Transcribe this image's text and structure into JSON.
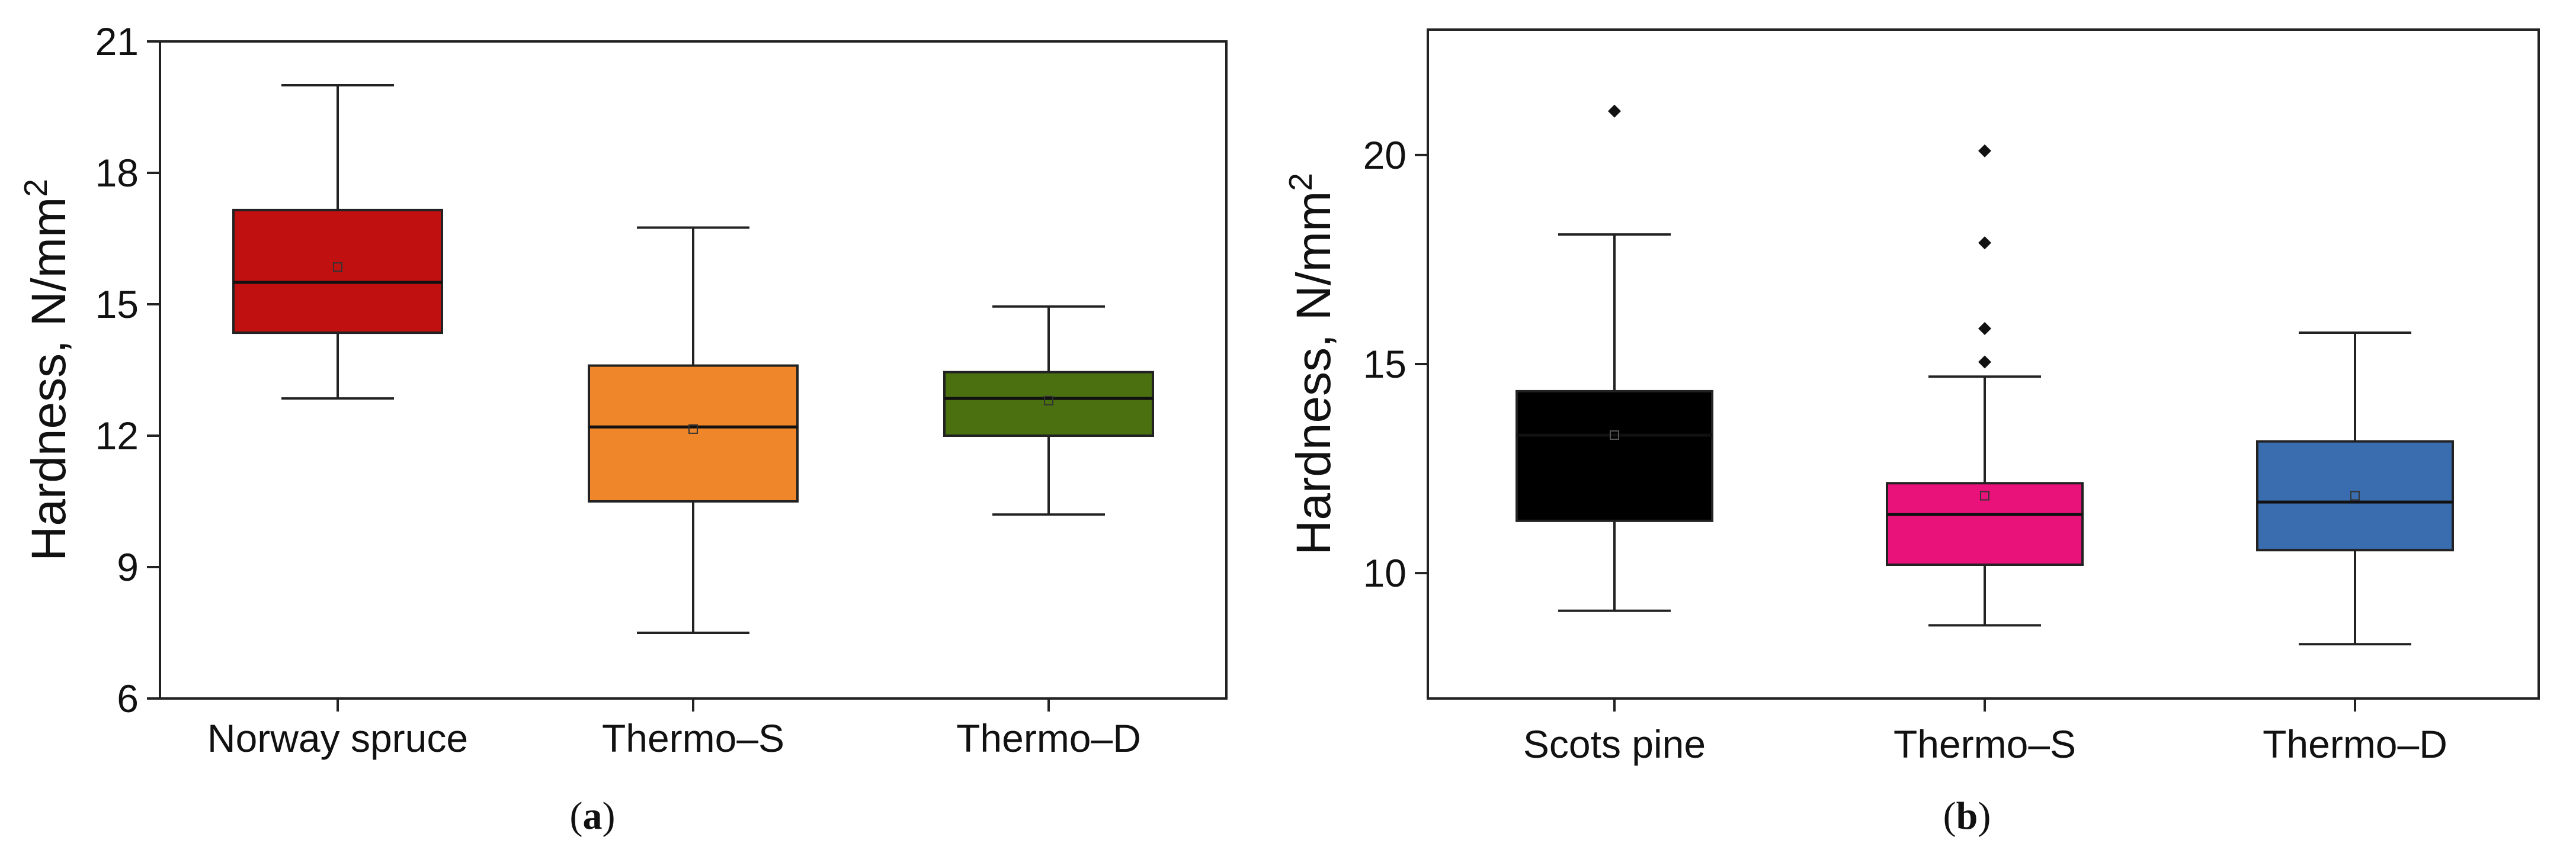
{
  "chart_data": [
    {
      "type": "box",
      "panel_label": "(a)",
      "ylabel": "Hardness, N/mm",
      "ylabel_sup": "2",
      "ylim": [
        6,
        21
      ],
      "yticks": [
        6,
        9,
        12,
        15,
        18,
        21
      ],
      "categories": [
        "Norway spruce",
        "Thermo–S",
        "Thermo–D"
      ],
      "boxes": [
        {
          "name": "Norway spruce",
          "whisker_low": 12.85,
          "q1": 14.35,
          "median": 15.5,
          "q3": 17.15,
          "whisker_high": 20.0,
          "mean": 15.85,
          "outliers": [],
          "color": "#c01010"
        },
        {
          "name": "Thermo–S",
          "whisker_low": 7.5,
          "q1": 10.5,
          "median": 12.2,
          "q3": 13.6,
          "whisker_high": 16.75,
          "mean": 12.15,
          "outliers": [],
          "color": "#f0862a"
        },
        {
          "name": "Thermo–D",
          "whisker_low": 10.2,
          "q1": 12.0,
          "median": 12.85,
          "q3": 13.45,
          "whisker_high": 14.95,
          "mean": 12.8,
          "outliers": [],
          "color": "#4a7010"
        }
      ]
    },
    {
      "type": "box",
      "panel_label": "(b)",
      "ylabel": "Hardness, N/mm",
      "ylabel_sup": "2",
      "ylim": [
        7,
        23
      ],
      "yticks": [
        10,
        15,
        20
      ],
      "categories": [
        "Scots pine",
        "Thermo–S",
        "Thermo–D"
      ],
      "boxes": [
        {
          "name": "Scots pine",
          "whisker_low": 9.1,
          "q1": 11.25,
          "median": 13.3,
          "q3": 14.35,
          "whisker_high": 18.1,
          "mean": 13.3,
          "outliers": [
            21.05
          ],
          "color": "#000000"
        },
        {
          "name": "Thermo–S",
          "whisker_low": 8.75,
          "q1": 10.2,
          "median": 11.4,
          "q3": 12.15,
          "whisker_high": 14.7,
          "mean": 11.85,
          "outliers": [
            15.05,
            15.85,
            17.9,
            20.1
          ],
          "color": "#e8127a"
        },
        {
          "name": "Thermo–D",
          "whisker_low": 8.3,
          "q1": 10.55,
          "median": 11.7,
          "q3": 13.15,
          "whisker_high": 15.75,
          "mean": 11.85,
          "outliers": [],
          "color": "#3a6db0"
        }
      ]
    }
  ]
}
